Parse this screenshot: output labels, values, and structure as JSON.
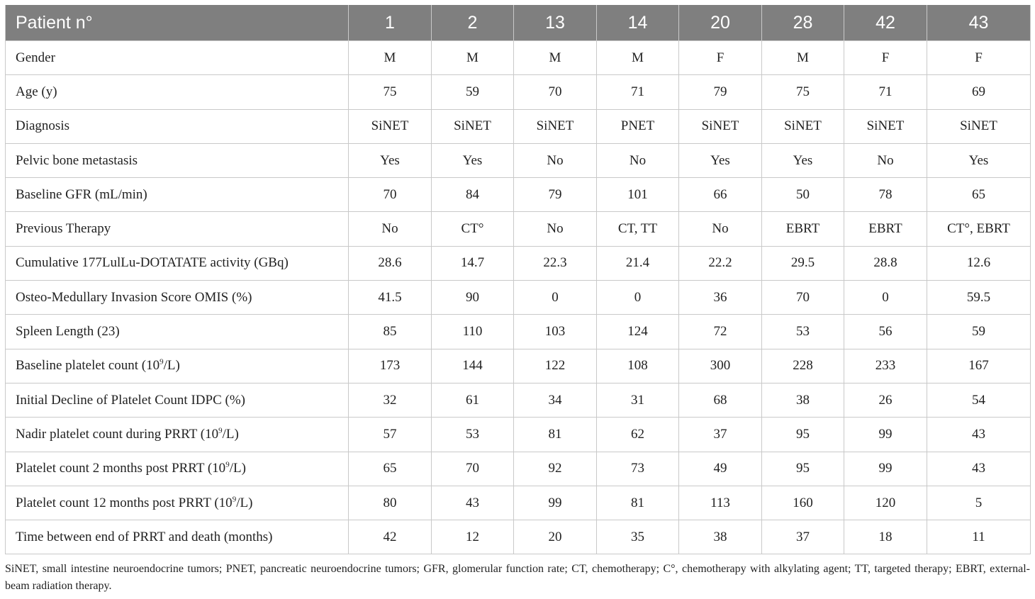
{
  "table": {
    "header_label": "Patient n°",
    "patients": [
      "1",
      "2",
      "13",
      "14",
      "20",
      "28",
      "42",
      "43"
    ],
    "rows": [
      {
        "label": "Gender",
        "values": [
          "M",
          "M",
          "M",
          "M",
          "F",
          "M",
          "F",
          "F"
        ]
      },
      {
        "label": "Age (y)",
        "values": [
          "75",
          "59",
          "70",
          "71",
          "79",
          "75",
          "71",
          "69"
        ]
      },
      {
        "label": "Diagnosis",
        "values": [
          "SiNET",
          "SiNET",
          "SiNET",
          "PNET",
          "SiNET",
          "SiNET",
          "SiNET",
          "SiNET"
        ]
      },
      {
        "label": "Pelvic bone metastasis",
        "values": [
          "Yes",
          "Yes",
          "No",
          "No",
          "Yes",
          "Yes",
          "No",
          "Yes"
        ]
      },
      {
        "label": "Baseline GFR (mL/min)",
        "values": [
          "70",
          "84",
          "79",
          "101",
          "66",
          "50",
          "78",
          "65"
        ]
      },
      {
        "label": "Previous Therapy",
        "values": [
          "No",
          "CT°",
          "No",
          "CT, TT",
          "No",
          "EBRT",
          "EBRT",
          "CT°, EBRT"
        ]
      },
      {
        "label": "Cumulative 177LulLu-DOTATATE activity (GBq)",
        "values": [
          "28.6",
          "14.7",
          "22.3",
          "21.4",
          "22.2",
          "29.5",
          "28.8",
          "12.6"
        ]
      },
      {
        "label": "Osteo-Medullary Invasion Score OMIS (%)",
        "values": [
          "41.5",
          "90",
          "0",
          "0",
          "36",
          "70",
          "0",
          "59.5"
        ]
      },
      {
        "label": "Spleen Length (23)",
        "values": [
          "85",
          "110",
          "103",
          "124",
          "72",
          "53",
          "56",
          "59"
        ]
      },
      {
        "label_pre": "Baseline platelet count (10",
        "label_sup": "9",
        "label_post": "/L)",
        "values": [
          "173",
          "144",
          "122",
          "108",
          "300",
          "228",
          "233",
          "167"
        ]
      },
      {
        "label": "Initial Decline of Platelet Count IDPC (%)",
        "values": [
          "32",
          "61",
          "34",
          "31",
          "68",
          "38",
          "26",
          "54"
        ]
      },
      {
        "label_pre": "Nadir platelet count during PRRT (10",
        "label_sup": "9",
        "label_post": "/L)",
        "values": [
          "57",
          "53",
          "81",
          "62",
          "37",
          "95",
          "99",
          "43"
        ]
      },
      {
        "label_pre": "Platelet count 2 months post PRRT (10",
        "label_sup": "9",
        "label_post": "/L)",
        "values": [
          "65",
          "70",
          "92",
          "73",
          "49",
          "95",
          "99",
          "43"
        ]
      },
      {
        "label_pre": "Platelet count 12 months post PRRT (10",
        "label_sup": "9",
        "label_post": "/L)",
        "values": [
          "80",
          "43",
          "99",
          "81",
          "113",
          "160",
          "120",
          "5"
        ]
      },
      {
        "label": "Time between end of PRRT and death (months)",
        "values": [
          "42",
          "12",
          "20",
          "35",
          "38",
          "37",
          "18",
          "11"
        ]
      }
    ]
  },
  "footnote": "SiNET, small intestine neuroendocrine tumors; PNET, pancreatic neuroendocrine tumors; GFR, glomerular function rate; CT, chemotherapy; C°, chemotherapy with alkylating agent; TT, targeted therapy; EBRT, external-beam radiation therapy.",
  "colors": {
    "header_bg": "#7f7f7f",
    "header_text": "#ffffff",
    "grid": "#c9c9c9",
    "text": "#222222"
  }
}
